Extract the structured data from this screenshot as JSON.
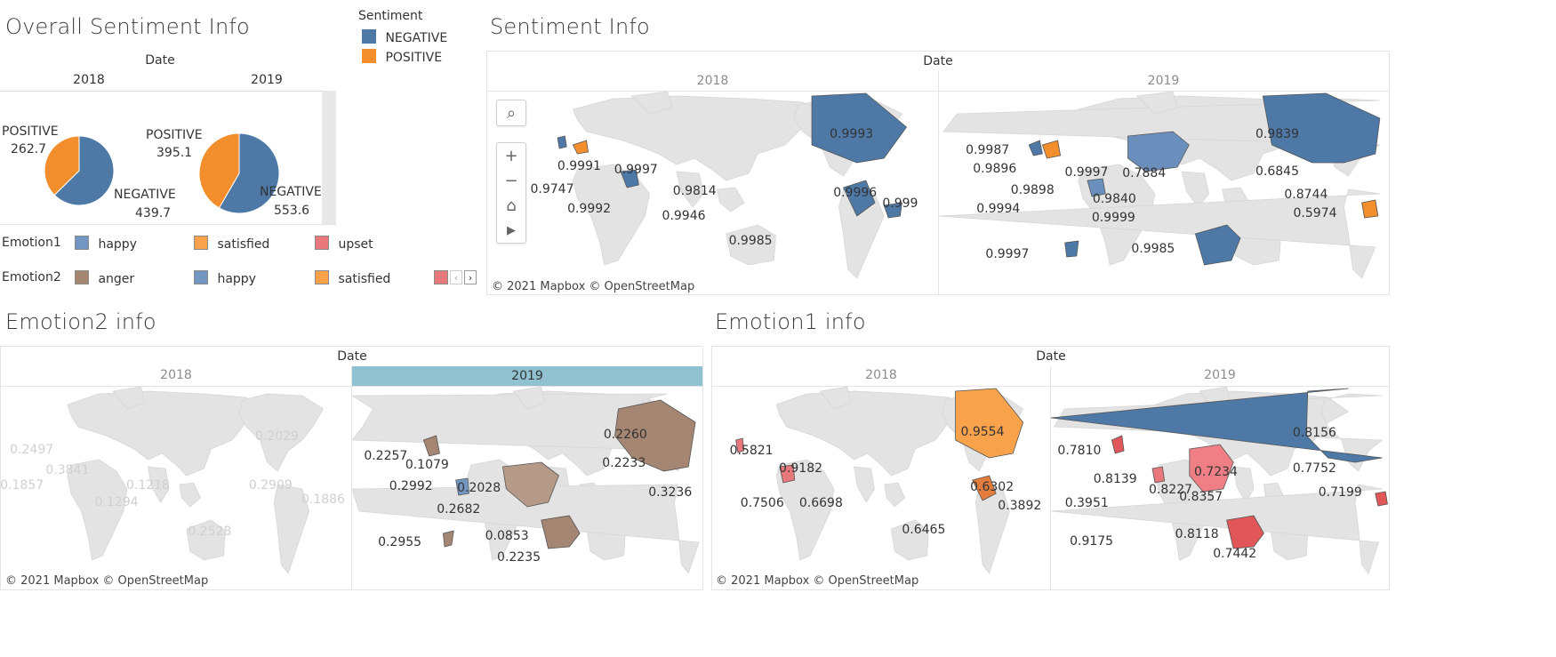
{
  "overall": {
    "title": "Overall Sentiment Info",
    "date_header": "Date",
    "years": [
      "2018",
      "2019"
    ],
    "pies": [
      {
        "year": "2018",
        "positive_label": "POSITIVE",
        "positive_value": "262.7",
        "negative_label": "NEGATIVE",
        "negative_value": "439.7",
        "positive": 262.7,
        "negative": 439.7
      },
      {
        "year": "2019",
        "positive_label": "POSITIVE",
        "positive_value": "395.1",
        "negative_label": "NEGATIVE",
        "negative_value": "553.6",
        "positive": 395.1,
        "negative": 553.6
      }
    ]
  },
  "sentiment_legend": {
    "title": "Sentiment",
    "items": [
      {
        "label": "NEGATIVE",
        "color": "#4e79a7"
      },
      {
        "label": "POSITIVE",
        "color": "#f28e2b"
      }
    ]
  },
  "emotion1_legend": {
    "title": "Emotion1",
    "items": [
      {
        "label": "happy",
        "color": "#7496c2"
      },
      {
        "label": "satisfied",
        "color": "#f8a24c"
      },
      {
        "label": "upset",
        "color": "#e8787c"
      }
    ]
  },
  "emotion2_legend": {
    "title": "Emotion2",
    "items": [
      {
        "label": "anger",
        "color": "#a58673"
      },
      {
        "label": "happy",
        "color": "#7496c2"
      },
      {
        "label": "satisfied",
        "color": "#f8a24c"
      },
      {
        "label": "",
        "color": "#e8787c"
      }
    ]
  },
  "sentiment_map": {
    "title": "Sentiment Info",
    "date_header": "Date",
    "years": [
      "2018",
      "2019"
    ],
    "labels_2018": [
      "0.9993",
      "0.9991",
      "0.9997",
      "0.9747",
      "0.9814",
      "0.9992",
      "0.9946",
      "0.9996",
      "0.999",
      "0.9985"
    ],
    "labels_2019": [
      "0.9839",
      "0.9987",
      "0.9896",
      "0.9997",
      "0.7884",
      "0.9898",
      "0.6845",
      "0.9840",
      "0.8744",
      "0.9994",
      "0.9999",
      "0.5974",
      "0.9985",
      "0.9997"
    ],
    "copyright": "© 2021 Mapbox  © OpenStreetMap"
  },
  "emotion2_map": {
    "title": "Emotion2 info",
    "date_header": "Date",
    "years": [
      "2018",
      "2019"
    ],
    "labels_2018": [
      "0.2497",
      "0.2029",
      "0.3841",
      "0.1857",
      "0.1218",
      "0.2909",
      "0.1294",
      "0.1886",
      "0.2528"
    ],
    "labels_2019": [
      "0.2257",
      "0.1079",
      "0.2260",
      "0.2992",
      "0.2233",
      "0.2028",
      "0.3236",
      "0.2682",
      "0.2955",
      "0.0853",
      "0.2235"
    ],
    "copyright": "© 2021 Mapbox  © OpenStreetMap"
  },
  "emotion1_map": {
    "title": "Emotion1 info",
    "date_header": "Date",
    "years": [
      "2018",
      "2019"
    ],
    "labels_2018": [
      "0.9554",
      "0.5821",
      "0.9182",
      "0.6302",
      "0.7506",
      "0.6698",
      "0.3892",
      "0.6465"
    ],
    "labels_2019": [
      "0.8156",
      "0.7810",
      "0.7234",
      "0.8139",
      "0.8227",
      "0.7752",
      "0.8357",
      "0.7199",
      "0.3951",
      "0.8118",
      "0.9175",
      "0.7442"
    ],
    "copyright": "© 2021 Mapbox  © OpenStreetMap"
  }
}
